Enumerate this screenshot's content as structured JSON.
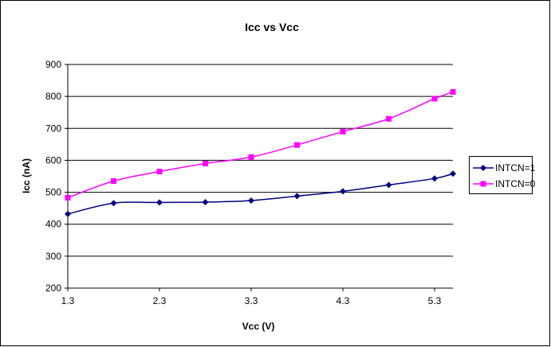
{
  "chart_data": {
    "type": "line",
    "title": "Icc vs Vcc",
    "xlabel": "Vcc (V)",
    "ylabel": "Icc (nA)",
    "xlim": [
      1.3,
      5.5
    ],
    "ylim": [
      200,
      900
    ],
    "x_ticks": [
      1.3,
      2.3,
      3.3,
      4.3,
      5.3
    ],
    "x_tick_labels": [
      "1.3",
      "2.3",
      "3.3",
      "4.3",
      "5.3"
    ],
    "y_ticks": [
      200,
      300,
      400,
      500,
      600,
      700,
      800,
      900
    ],
    "y_tick_labels": [
      "200",
      "300",
      "400",
      "500",
      "600",
      "700",
      "800",
      "900"
    ],
    "grid": "horizontal",
    "legend_position": "right",
    "series": [
      {
        "name": "INTCN=1",
        "color": "#000080",
        "marker": "diamond",
        "x": [
          1.3,
          1.8,
          2.3,
          2.8,
          3.3,
          3.8,
          4.3,
          4.8,
          5.3,
          5.5
        ],
        "y": [
          432,
          466,
          468,
          469,
          474,
          488,
          503,
          523,
          543,
          558
        ]
      },
      {
        "name": "INTCN=0",
        "color": "#FF00FF",
        "marker": "square",
        "x": [
          1.3,
          1.8,
          2.3,
          2.8,
          3.3,
          3.8,
          4.3,
          4.8,
          5.3,
          5.5
        ],
        "y": [
          483,
          535,
          565,
          590,
          610,
          648,
          690,
          730,
          793,
          814
        ]
      }
    ]
  }
}
